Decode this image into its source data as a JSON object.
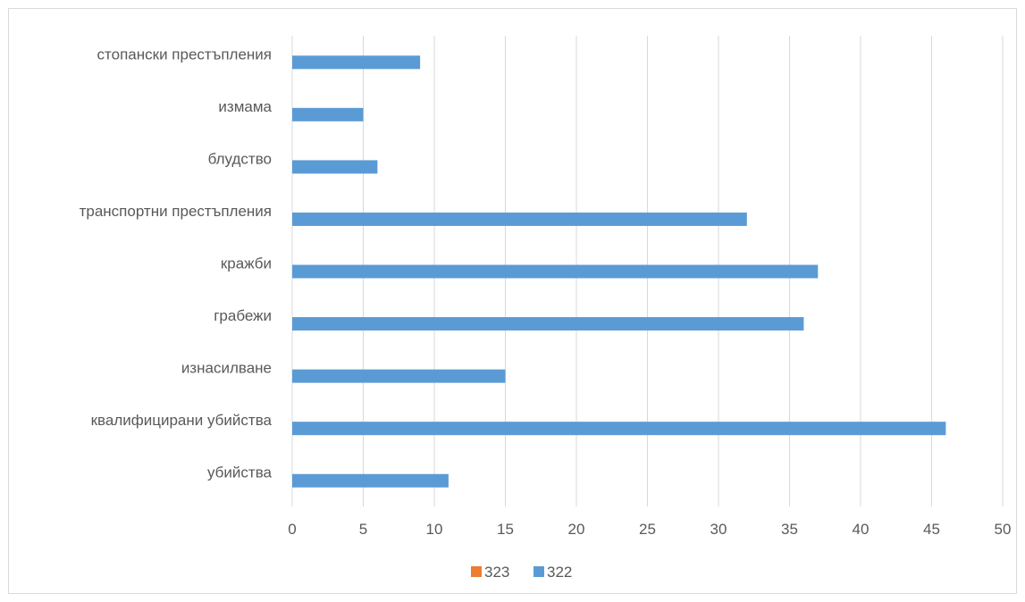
{
  "chart_data": {
    "type": "bar",
    "orientation": "horizontal",
    "categories": [
      "убийства",
      "квалифицирани убийства",
      "изнасилване",
      "грабежи",
      "кражби",
      "транспортни престъпления",
      "блудство",
      "измама",
      "стопански престъпления"
    ],
    "series": [
      {
        "name": "323",
        "color": "#ED7D31",
        "values": [
          0,
          0,
          0,
          0,
          0,
          0,
          0,
          0,
          0
        ]
      },
      {
        "name": "322",
        "color": "#5B9BD5",
        "values": [
          11,
          46,
          15,
          36,
          37,
          32,
          6,
          5,
          9
        ]
      }
    ],
    "xlim": [
      0,
      50
    ],
    "xticks": [
      0,
      5,
      10,
      15,
      20,
      25,
      30,
      35,
      40,
      45,
      50
    ],
    "grid": "vertical",
    "legend_position": "bottom",
    "title": "",
    "xlabel": "",
    "ylabel": ""
  }
}
